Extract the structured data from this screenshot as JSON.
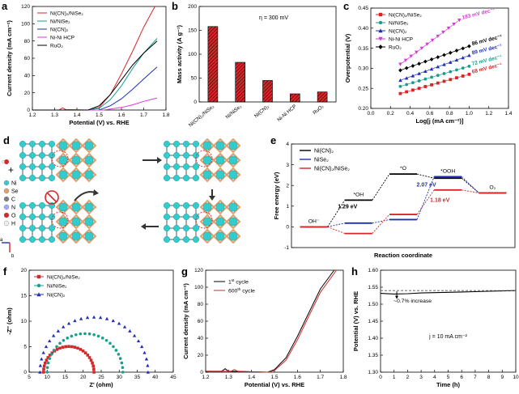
{
  "labels": {
    "a": "a",
    "b": "b",
    "c": "c",
    "d": "d",
    "e": "e",
    "f": "f",
    "g": "g",
    "h": "h"
  },
  "colors": {
    "red": "#d62728",
    "teal": "#1a9e8c",
    "blue": "#1f2fb5",
    "magenta": "#d838d8",
    "black": "#000000",
    "cyan": "#33cccc",
    "orange": "#e0a070"
  },
  "chart_data": [
    {
      "id": "a",
      "type": "line",
      "xlabel": "Potential (V) vs. RHE",
      "ylabel": "Current density (mA cm⁻²)",
      "xlim": [
        1.2,
        1.8
      ],
      "ylim": [
        0,
        120
      ],
      "xticks": [
        "1.2",
        "1.3",
        "1.4",
        "1.5",
        "1.6",
        "1.7",
        "1.8"
      ],
      "yticks": [
        "0",
        "20",
        "40",
        "60",
        "80",
        "100",
        "120"
      ],
      "series": [
        {
          "name": "Ni(CN)₂/NiSe₂",
          "color": "#d62728",
          "x": [
            1.2,
            1.32,
            1.335,
            1.35,
            1.45,
            1.5,
            1.55,
            1.6,
            1.65,
            1.7,
            1.75
          ],
          "y": [
            0,
            0,
            2.5,
            0.5,
            0,
            3,
            18,
            42,
            68,
            96,
            122
          ]
        },
        {
          "name": "Ni/NiSe₂",
          "color": "#1a9e8c",
          "x": [
            1.2,
            1.45,
            1.5,
            1.55,
            1.6,
            1.65,
            1.7,
            1.76
          ],
          "y": [
            0,
            0,
            2,
            12,
            28,
            48,
            66,
            83
          ]
        },
        {
          "name": "Ni(CN)₂",
          "color": "#1f2fb5",
          "x": [
            1.2,
            1.5,
            1.55,
            1.6,
            1.65,
            1.7,
            1.76
          ],
          "y": [
            0,
            0,
            5,
            13,
            24,
            36,
            50
          ]
        },
        {
          "name": "Ni-Ni HCP",
          "color": "#d838d8",
          "x": [
            1.2,
            1.52,
            1.6,
            1.65,
            1.7,
            1.76
          ],
          "y": [
            0,
            0,
            3,
            6,
            10,
            14
          ]
        },
        {
          "name": "RuO₂",
          "color": "#000000",
          "x": [
            1.2,
            1.45,
            1.5,
            1.55,
            1.6,
            1.65,
            1.7,
            1.76
          ],
          "y": [
            0,
            0,
            5,
            18,
            35,
            52,
            66,
            80
          ]
        }
      ]
    },
    {
      "id": "b",
      "type": "bar",
      "ylabel": "Mass activity (A g⁻¹)",
      "annotation": "η = 300 mV",
      "categories": [
        "Ni(CN)₂/NiSe₂",
        "Ni/NiSe₂",
        "Ni(CN)₂",
        "Ni-Ni HCP",
        "RuO₂"
      ],
      "values": [
        158,
        83,
        45,
        17,
        21
      ],
      "ylim": [
        0,
        200
      ],
      "yticks": [
        "0",
        "50",
        "100",
        "150",
        "200"
      ]
    },
    {
      "id": "c",
      "type": "scatter",
      "xlabel": "Log[j (mA cm⁻²)]",
      "ylabel": "Overpotential (V)",
      "xlim": [
        0.0,
        1.4
      ],
      "ylim": [
        0.2,
        0.45
      ],
      "xticks": [
        "0.0",
        "0.2",
        "0.4",
        "0.6",
        "0.8",
        "1.0",
        "1.2",
        "1.4"
      ],
      "yticks": [
        "0.20",
        "0.25",
        "0.30",
        "0.35",
        "0.40",
        "0.45"
      ],
      "series": [
        {
          "name": "Ni(CN)₂/NiSe₂",
          "color": "#d62728",
          "marker": "square",
          "slope": "68 mV dec⁻¹",
          "x0": 0.3,
          "x1": 1.0,
          "y0": 0.237,
          "y1": 0.285
        },
        {
          "name": "Ni/NiSe₂",
          "color": "#1a9e8c",
          "marker": "circle",
          "slope": "72 mV dec⁻¹",
          "x0": 0.3,
          "x1": 1.0,
          "y0": 0.255,
          "y1": 0.305
        },
        {
          "name": "Ni(CN)₂",
          "color": "#1f2fb5",
          "marker": "triangle",
          "slope": "89 mV dec⁻¹",
          "x0": 0.3,
          "x1": 1.0,
          "y0": 0.27,
          "y1": 0.332
        },
        {
          "name": "Ni-Ni HCP",
          "color": "#d838d8",
          "marker": "triangle-down",
          "slope": "183 mV dec⁻¹",
          "x0": 0.3,
          "x1": 0.9,
          "y0": 0.31,
          "y1": 0.42
        },
        {
          "name": "RuO₂",
          "color": "#000000",
          "marker": "diamond",
          "slope": "86 mV dec⁻¹",
          "x0": 0.3,
          "x1": 1.0,
          "y0": 0.295,
          "y1": 0.355
        }
      ]
    },
    {
      "id": "e",
      "type": "line",
      "xlabel": "Reaction coordinate",
      "ylabel": "Free energy (eV)",
      "ylim": [
        -1,
        4
      ],
      "yticks": [
        "-1",
        "0",
        "1",
        "2",
        "3",
        "4"
      ],
      "species": [
        "OH⁻",
        "*OH",
        "*O",
        "*OOH",
        "O₂"
      ],
      "series": [
        {
          "name": "Ni(CN)₂",
          "color": "#000000",
          "levels": [
            0,
            1.29,
            2.55,
            2.35,
            1.64
          ]
        },
        {
          "name": "NiSe₂",
          "color": "#1f2fb5",
          "levels": [
            0,
            0.18,
            0.35,
            2.42,
            1.64
          ]
        },
        {
          "name": "Ni(CN)₂/NiSe₂",
          "color": "#d62728",
          "levels": [
            0,
            -0.32,
            0.6,
            1.78,
            1.64
          ]
        }
      ],
      "annotations": {
        "a1": "1.29 eV",
        "a2": "2.07 eV",
        "a3": "1.18 eV"
      }
    },
    {
      "id": "f",
      "type": "scatter",
      "xlabel": "Z' (ohm)",
      "ylabel": "-Z'' (ohm)",
      "xlim": [
        5,
        45
      ],
      "ylim": [
        0,
        20
      ],
      "xticks": [
        "5",
        "10",
        "15",
        "20",
        "25",
        "30",
        "35",
        "40",
        "45"
      ],
      "yticks": [
        "0",
        "5",
        "10",
        "15",
        "20"
      ],
      "series": [
        {
          "name": "Ni(CN)₂/NiSe₂",
          "color": "#d62728",
          "marker": "square",
          "z0": 9,
          "z1": 23
        },
        {
          "name": "Ni/NiSe₂",
          "color": "#1a9e8c",
          "marker": "circle",
          "z0": 10,
          "z1": 31
        },
        {
          "name": "Ni(CN)₂",
          "color": "#1f2fb5",
          "marker": "triangle",
          "z0": 8,
          "z1": 38
        }
      ]
    },
    {
      "id": "g",
      "type": "line",
      "xlabel": "Potential (V) vs. RHE",
      "ylabel": "Current density (mA cm⁻²)",
      "xlim": [
        1.2,
        1.8
      ],
      "ylim": [
        0,
        120
      ],
      "xticks": [
        "1.2",
        "1.3",
        "1.4",
        "1.5",
        "1.6",
        "1.7",
        "1.8"
      ],
      "yticks": [
        "0",
        "20",
        "40",
        "60",
        "80",
        "100",
        "120"
      ],
      "series": [
        {
          "name": "1st cycle",
          "name_main": "1",
          "name_sup": "st",
          "name_tail": " cycle",
          "color": "#000000",
          "x": [
            1.2,
            1.27,
            1.285,
            1.3,
            1.47,
            1.5,
            1.55,
            1.6,
            1.65,
            1.7,
            1.76
          ],
          "y": [
            1,
            1,
            4,
            1,
            0,
            3,
            17,
            42,
            70,
            98,
            122
          ]
        },
        {
          "name": "600th cycle",
          "name_main": "600",
          "name_sup": "th",
          "name_tail": " cycle",
          "color": "#d62728",
          "x": [
            1.2,
            1.31,
            1.325,
            1.34,
            1.47,
            1.5,
            1.55,
            1.6,
            1.65,
            1.7,
            1.77
          ],
          "y": [
            1,
            1,
            3,
            1,
            0,
            2,
            14,
            38,
            66,
            94,
            122
          ]
        }
      ]
    },
    {
      "id": "h",
      "type": "line",
      "xlabel": "Time (h)",
      "ylabel": "Potential (V) vs. RHE",
      "xlim": [
        0,
        10
      ],
      "ylim": [
        1.3,
        1.6
      ],
      "xticks": [
        "0",
        "1",
        "2",
        "3",
        "4",
        "5",
        "6",
        "7",
        "8",
        "9",
        "10"
      ],
      "yticks": [
        "1.30",
        "1.35",
        "1.40",
        "1.45",
        "1.50",
        "1.55",
        "1.60"
      ],
      "series": [
        {
          "name": "potential",
          "color": "#000000",
          "x": [
            0,
            1,
            2,
            3,
            4,
            5,
            6,
            7,
            8,
            9,
            10
          ],
          "y": [
            1.532,
            1.53,
            1.531,
            1.533,
            1.534,
            1.535,
            1.536,
            1.537,
            1.538,
            1.539,
            1.54
          ]
        },
        {
          "name": "reference",
          "color": "#555555",
          "dashed": true,
          "x": [
            0,
            10
          ],
          "y": [
            1.54,
            1.54
          ]
        }
      ],
      "annotation": "~0.7% increase",
      "note": "j = 10 mA cm⁻²"
    }
  ],
  "diagram_d": {
    "legend": [
      "Ni",
      "Se",
      "C",
      "N",
      "O",
      "H"
    ],
    "axis_a": "a",
    "axis_b": "b"
  }
}
